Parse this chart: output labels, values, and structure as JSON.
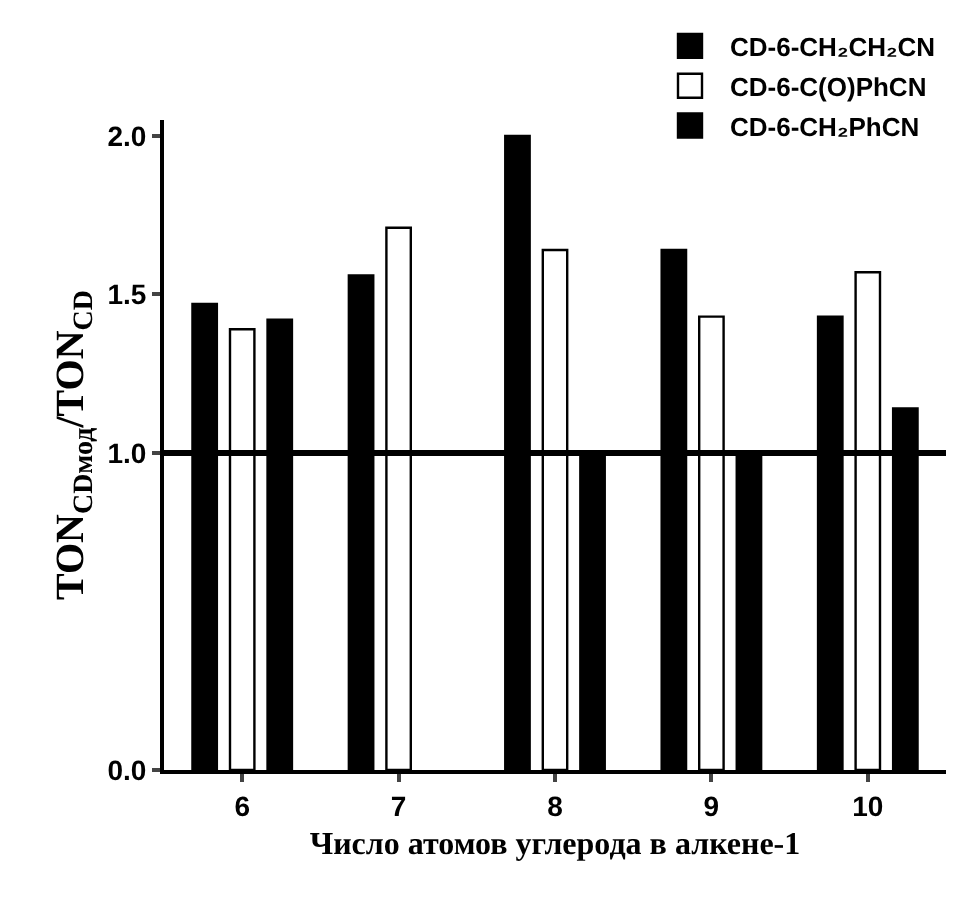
{
  "chart_data": {
    "type": "bar",
    "xlabel": "Число атомов углерода в алкене-1",
    "ylabel": "TON$_{CDмод}$/TON$_{CD}$",
    "categories": [
      "6",
      "7",
      "8",
      "9",
      "10"
    ],
    "series": [
      {
        "name": "CD-6-CH₂CH₂CN",
        "color": "#000000",
        "values": [
          1.47,
          1.56,
          2.0,
          1.64,
          1.43
        ]
      },
      {
        "name": "CD-6-C(O)PhCN",
        "color": "#ffffff",
        "values": [
          1.39,
          1.71,
          1.64,
          1.43,
          1.57
        ]
      },
      {
        "name": "CD-6-CH₂PhCN",
        "color": "#000000",
        "values": [
          1.42,
          null,
          1.0,
          1.0,
          1.14
        ]
      }
    ],
    "ylim": [
      0,
      2.05
    ],
    "yticks": [
      {
        "value": 0,
        "label": "0.0"
      },
      {
        "value": 1,
        "label": "1.0"
      },
      {
        "value": 1.5,
        "label": "1.5"
      },
      {
        "value": 2,
        "label": "2.0"
      }
    ],
    "ref_lines": [
      {
        "axis": "y",
        "value": 1.0,
        "color": "#000000"
      }
    ],
    "grid": false,
    "legend": "top right"
  }
}
